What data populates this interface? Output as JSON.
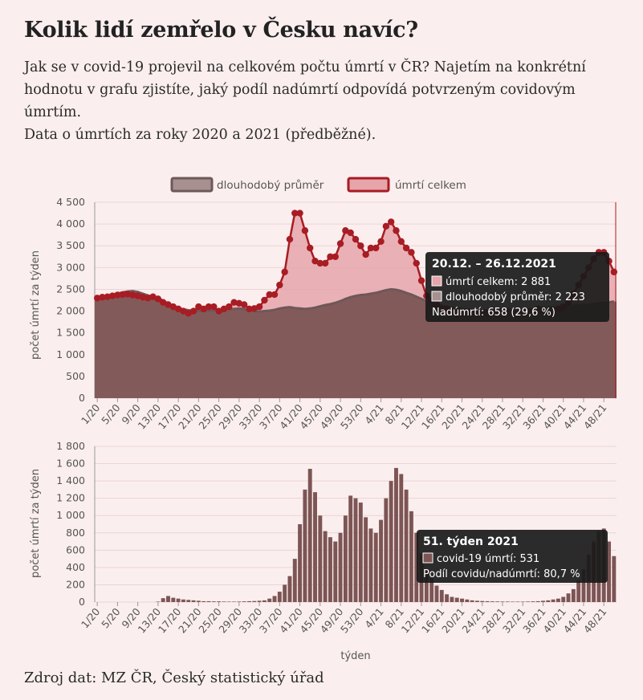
{
  "title": "Kolik lidí zemřelo v Česku navíc?",
  "description": [
    "Jak se v covid-19 projevil na celkovém počtu úmrtí v ČR? Najetím na konkrétní hodnotu v grafu zjistíte, jaký podíl nadúmrtí odpovídá potvrzeným covidovým úmrtím.",
    "Data o úmrtích za roky 2020 a 2021 (předběžné)."
  ],
  "source": "Zdroj dat: MZ ČR, Český statistický úřad",
  "colors": {
    "total": "#a81c24",
    "total_fill": "#e5a5aa",
    "average": "#7d5555",
    "average_line": "#6e5858",
    "bar": "#7d5555",
    "tooltip_bg": "#1a1a1a"
  },
  "chart_data": [
    {
      "type": "area",
      "ylabel": "počet úmrtí za týden",
      "ylim": [
        0,
        4500
      ],
      "yticks": [
        "0",
        "500",
        "1 000",
        "1 500",
        "2 000",
        "2 500",
        "3 000",
        "3 500",
        "4 000",
        "4 500"
      ],
      "ytick_values": [
        0,
        500,
        1000,
        1500,
        2000,
        2500,
        3000,
        3500,
        4000,
        4500
      ],
      "xtick_labels": [
        "1/20",
        "5/20",
        "9/20",
        "13/20",
        "17/20",
        "21/20",
        "25/20",
        "29/20",
        "33/20",
        "37/20",
        "41/20",
        "45/20",
        "49/20",
        "53/20",
        "4/21",
        "8/21",
        "12/21",
        "16/21",
        "20/21",
        "24/21",
        "28/21",
        "32/21",
        "36/21",
        "40/21",
        "44/21",
        "48/21"
      ],
      "legend": {
        "position": "top",
        "entries": [
          "dlouhodobý průměr",
          "úmrtí celkem"
        ]
      },
      "series": [
        {
          "name": "úmrtí celkem",
          "values": [
            2300,
            2320,
            2330,
            2350,
            2370,
            2380,
            2390,
            2370,
            2350,
            2320,
            2300,
            2330,
            2280,
            2200,
            2150,
            2100,
            2050,
            2000,
            1950,
            2000,
            2100,
            2050,
            2100,
            2100,
            2000,
            2050,
            2100,
            2200,
            2180,
            2150,
            2050,
            2060,
            2100,
            2250,
            2380,
            2380,
            2600,
            2900,
            3650,
            4250,
            4250,
            3850,
            3450,
            3150,
            3100,
            3100,
            3250,
            3250,
            3550,
            3850,
            3800,
            3650,
            3500,
            3300,
            3450,
            3450,
            3600,
            3950,
            4050,
            3850,
            3600,
            3450,
            3350,
            3100,
            2700,
            2350,
            2250,
            2150,
            2050,
            2050,
            2000,
            1950,
            1950,
            1950,
            1950,
            1950,
            1950,
            1950,
            1950,
            1950,
            2000,
            2000,
            1950,
            1950,
            1950,
            1950,
            2000,
            2050,
            2000,
            1950,
            1950,
            2050,
            2100,
            2200,
            2400,
            2600,
            2800,
            3000,
            3200,
            3350,
            3350,
            3150,
            2900
          ]
        },
        {
          "name": "dlouhodobý průměr",
          "values": [
            2300,
            2320,
            2350,
            2380,
            2400,
            2430,
            2450,
            2460,
            2440,
            2400,
            2360,
            2330,
            2300,
            2240,
            2170,
            2110,
            2070,
            2040,
            2020,
            2010,
            2000,
            2000,
            2010,
            2020,
            2030,
            2040,
            2050,
            2050,
            2060,
            2050,
            2030,
            2000,
            1990,
            2000,
            2010,
            2030,
            2060,
            2080,
            2090,
            2070,
            2060,
            2050,
            2060,
            2080,
            2110,
            2140,
            2160,
            2190,
            2230,
            2280,
            2320,
            2350,
            2370,
            2380,
            2400,
            2420,
            2450,
            2480,
            2500,
            2490,
            2460,
            2420,
            2380,
            2330,
            2280,
            2230,
            2190,
            2150,
            2120,
            2090,
            2070,
            2060,
            2050,
            2040,
            2030,
            2030,
            2020,
            2020,
            2020,
            2010,
            2010,
            2010,
            2010,
            2020,
            2030,
            2040,
            2050,
            2060,
            2070,
            2080,
            2080,
            2090,
            2100,
            2110,
            2120,
            2130,
            2140,
            2150,
            2160,
            2180,
            2190,
            2200,
            2223
          ]
        }
      ],
      "tooltip": {
        "title": "20.12. – 26.12.2021",
        "rows": [
          "úmrtí celkem: 2 881",
          "dlouhodobý průměr: 2 223",
          "Nadúmrtí: 658 (29,6 %)"
        ]
      }
    },
    {
      "type": "bar",
      "xlabel": "týden",
      "ylabel": "počet úmrtí za týden",
      "ylim": [
        0,
        1800
      ],
      "yticks": [
        "0",
        "200",
        "400",
        "600",
        "800",
        "1 000",
        "1 200",
        "1 400",
        "1 600",
        "1 800"
      ],
      "ytick_values": [
        0,
        200,
        400,
        600,
        800,
        1000,
        1200,
        1400,
        1600,
        1800
      ],
      "xtick_labels": [
        "1/20",
        "5/20",
        "9/20",
        "13/20",
        "17/20",
        "21/20",
        "25/20",
        "29/20",
        "33/20",
        "37/20",
        "41/20",
        "45/20",
        "49/20",
        "53/20",
        "4/21",
        "8/21",
        "12/21",
        "16/21",
        "20/21",
        "24/21",
        "28/21",
        "32/21",
        "36/21",
        "40/21",
        "44/21",
        "48/21"
      ],
      "series": [
        {
          "name": "covid-19 úmrtí",
          "values": [
            0,
            0,
            0,
            0,
            0,
            0,
            0,
            0,
            0,
            0,
            0,
            0,
            5,
            45,
            70,
            50,
            40,
            30,
            25,
            20,
            15,
            10,
            10,
            8,
            8,
            6,
            5,
            5,
            6,
            8,
            10,
            12,
            15,
            20,
            40,
            70,
            120,
            200,
            300,
            500,
            900,
            1300,
            1540,
            1270,
            1000,
            820,
            750,
            700,
            800,
            1000,
            1230,
            1200,
            1150,
            980,
            850,
            800,
            950,
            1200,
            1400,
            1550,
            1480,
            1300,
            1050,
            800,
            560,
            380,
            280,
            190,
            140,
            90,
            60,
            50,
            40,
            30,
            20,
            15,
            12,
            10,
            8,
            7,
            6,
            6,
            5,
            5,
            5,
            6,
            8,
            10,
            15,
            20,
            30,
            40,
            60,
            100,
            150,
            250,
            380,
            550,
            700,
            820,
            850,
            700,
            531
          ]
        }
      ],
      "tooltip": {
        "title": "51. týden 2021",
        "rows": [
          "covid-19 úmrtí: 531",
          "Podíl covidu/nadúmrtí: 80,7 %"
        ]
      }
    }
  ]
}
